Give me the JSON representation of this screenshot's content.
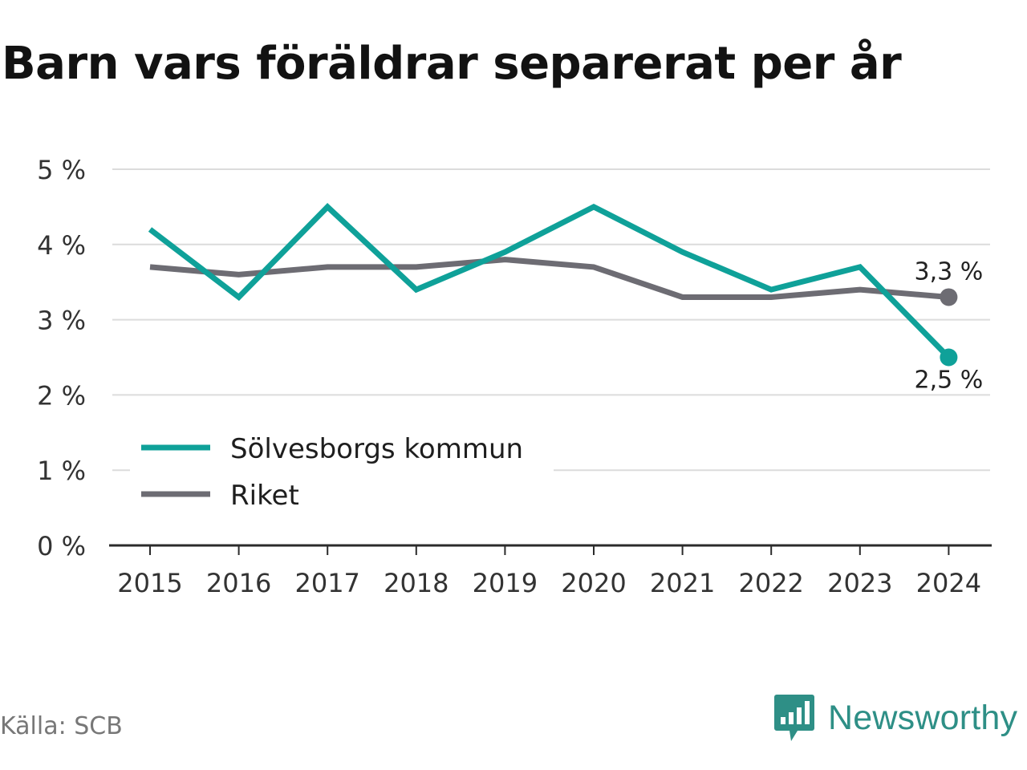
{
  "title": "Barn vars föräldrar separerat per år",
  "source": "Källa: SCB",
  "brand": {
    "name": "Newsworthy",
    "icon": "newsworthy-logo-icon",
    "color": "#2e8f86"
  },
  "chart_data": {
    "type": "line",
    "title": "Barn vars föräldrar separerat per år",
    "xlabel": "",
    "ylabel": "",
    "x": [
      "2015",
      "2016",
      "2017",
      "2018",
      "2019",
      "2020",
      "2021",
      "2022",
      "2023",
      "2024"
    ],
    "ylim": [
      0,
      5
    ],
    "yticks": [
      "0 %",
      "1 %",
      "2 %",
      "3 %",
      "4 %",
      "5 %"
    ],
    "grid": true,
    "legend_position": "bottom-left",
    "series": [
      {
        "name": "Sölvesborgs kommun",
        "color": "#0fa199",
        "values": [
          4.2,
          3.3,
          4.5,
          3.4,
          3.9,
          4.5,
          3.9,
          3.4,
          3.7,
          2.5
        ],
        "end_label": "2,5 %",
        "end_label_position": "below"
      },
      {
        "name": "Riket",
        "color": "#6d6c73",
        "values": [
          3.7,
          3.6,
          3.7,
          3.7,
          3.8,
          3.7,
          3.3,
          3.3,
          3.4,
          3.3
        ],
        "end_label": "3,3 %",
        "end_label_position": "above"
      }
    ]
  }
}
